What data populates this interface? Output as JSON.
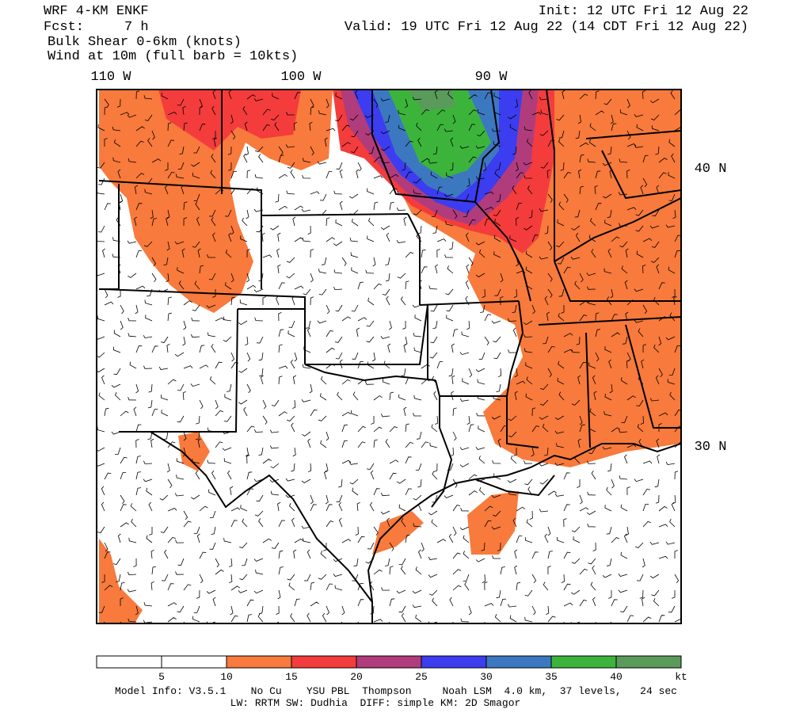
{
  "header": {
    "model": "WRF 4-KM ENKF",
    "forecast": "Fcst:     7 h",
    "field": "Bulk Shear 0-6km (knots)",
    "wind": "Wind at 10m (full barb = 10kts)",
    "init": "Init: 12 UTC Fri 12 Aug 22",
    "valid": "Valid: 19 UTC Fri 12 Aug 22 (14 CDT Fri 12 Aug 22)"
  },
  "map": {
    "lon_labels": [
      "110 W",
      "100 W",
      "90 W"
    ],
    "lat_labels": [
      "40 N",
      "30 N"
    ]
  },
  "colorbar": {
    "colors": [
      "#ffffff",
      "#ffffff",
      "#f87a3c",
      "#f43c3c",
      "#b03c7c",
      "#3c3cf0",
      "#3c78c0",
      "#3cb43c",
      "#5a9a5a"
    ],
    "labels": [
      5,
      10,
      15,
      20,
      25,
      30,
      35,
      40
    ],
    "unit": "kt"
  },
  "footer": {
    "line1": "Model Info: V3.5.1    No Cu    YSU PBL  Thompson     Noah LSM  4.0 km,  37 levels,   24 sec",
    "line2": "LW: RRTM SW: Dudhia  DIFF: simple KM: 2D Smagor"
  }
}
